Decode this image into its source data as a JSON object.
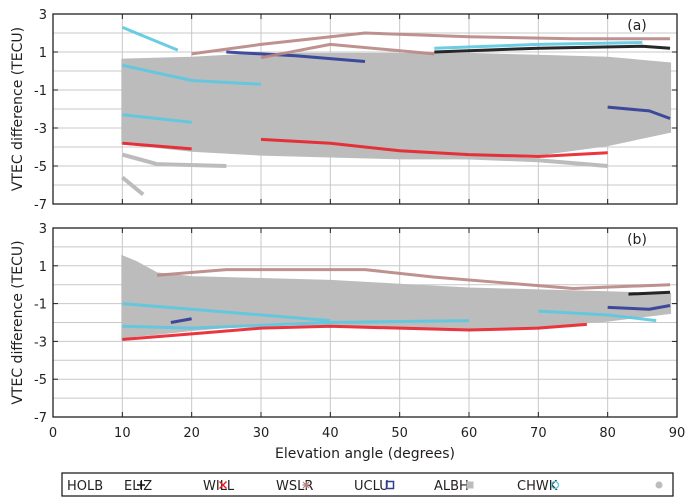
{
  "chart_data": [
    {
      "type": "scatter",
      "panel_label": "(a)",
      "xlabel": "Elevation angle (degrees)",
      "ylabel": "VTEC difference (TECU)",
      "xlim": [
        0,
        90
      ],
      "ylim": [
        -7,
        3
      ],
      "xticks": [
        0,
        10,
        20,
        30,
        40,
        50,
        60,
        70,
        80,
        90
      ],
      "yticks": [
        3,
        1,
        -1,
        -3,
        -5,
        -7
      ],
      "grid": true,
      "series": [
        {
          "name": "ALBH",
          "color": "#bcbcbc",
          "band": {
            "x": [
              10,
              20,
              30,
              40,
              50,
              60,
              70,
              80,
              89
            ],
            "upper": [
              0.6,
              0.7,
              0.9,
              0.9,
              0.9,
              0.9,
              0.8,
              0.7,
              0.4
            ],
            "lower": [
              -3.8,
              -4.2,
              -4.4,
              -4.5,
              -4.6,
              -4.6,
              -4.4,
              -3.9,
              -3.2
            ]
          },
          "traces": [
            {
              "x": [
                10,
                13
              ],
              "y": [
                -5.6,
                -6.5
              ]
            },
            {
              "x": [
                10,
                15,
                25
              ],
              "y": [
                -4.4,
                -4.9,
                -5.0
              ]
            },
            {
              "x": [
                30,
                50,
                70,
                80
              ],
              "y": [
                -4.2,
                -4.4,
                -4.7,
                -5.0
              ]
            }
          ]
        },
        {
          "name": "CHWK",
          "color": "#5bc8e0",
          "traces": [
            {
              "x": [
                10,
                14,
                18
              ],
              "y": [
                2.3,
                1.7,
                1.1
              ]
            },
            {
              "x": [
                10,
                20,
                30
              ],
              "y": [
                0.3,
                -0.5,
                -0.7
              ]
            },
            {
              "x": [
                10,
                15,
                20
              ],
              "y": [
                -2.3,
                -2.5,
                -2.7
              ]
            },
            {
              "x": [
                55,
                70,
                85
              ],
              "y": [
                1.2,
                1.4,
                1.5
              ]
            }
          ]
        },
        {
          "name": "UCLU",
          "color": "#2e3c96",
          "traces": [
            {
              "x": [
                25,
                35,
                45
              ],
              "y": [
                1.0,
                0.8,
                0.5
              ]
            },
            {
              "x": [
                80,
                86,
                89
              ],
              "y": [
                -1.9,
                -2.1,
                -2.5
              ]
            }
          ]
        },
        {
          "name": "WSLR",
          "color": "#b88684",
          "traces": [
            {
              "x": [
                20,
                30,
                45,
                60,
                75,
                89
              ],
              "y": [
                0.9,
                1.4,
                2.0,
                1.8,
                1.7,
                1.7
              ]
            },
            {
              "x": [
                30,
                40,
                55
              ],
              "y": [
                0.7,
                1.4,
                0.9
              ]
            }
          ]
        },
        {
          "name": "WILL",
          "color": "#e8202a",
          "traces": [
            {
              "x": [
                10,
                20
              ],
              "y": [
                -3.8,
                -4.1
              ]
            },
            {
              "x": [
                30,
                40,
                50,
                60,
                70,
                80
              ],
              "y": [
                -3.6,
                -3.8,
                -4.2,
                -4.4,
                -4.5,
                -4.3
              ]
            }
          ]
        },
        {
          "name": "ELIZ",
          "color": "#111111",
          "traces": [
            {
              "x": [
                55,
                70,
                85,
                89
              ],
              "y": [
                1.0,
                1.2,
                1.3,
                1.2
              ]
            }
          ]
        }
      ]
    },
    {
      "type": "scatter",
      "panel_label": "(b)",
      "xlabel": "Elevation angle (degrees)",
      "ylabel": "VTEC difference (TECU)",
      "xlim": [
        0,
        90
      ],
      "ylim": [
        -7,
        3
      ],
      "xticks": [
        0,
        10,
        20,
        30,
        40,
        50,
        60,
        70,
        80,
        90
      ],
      "yticks": [
        3,
        1,
        -1,
        -3,
        -5,
        -7
      ],
      "grid": true,
      "series": [
        {
          "name": "ALBH",
          "color": "#bcbcbc",
          "band": {
            "x": [
              10,
              12,
              15,
              20,
              30,
              40,
              50,
              60,
              70,
              80,
              89
            ],
            "upper": [
              1.5,
              1.2,
              0.6,
              0.4,
              0.3,
              0.2,
              0.0,
              -0.2,
              -0.3,
              -0.4,
              -0.5
            ],
            "lower": [
              -2.9,
              -2.7,
              -2.6,
              -2.4,
              -2.1,
              -2.1,
              -2.2,
              -2.3,
              -2.2,
              -1.9,
              -1.5
            ]
          }
        },
        {
          "name": "CHWK",
          "color": "#5bc8e0",
          "traces": [
            {
              "x": [
                10,
                20,
                30,
                40
              ],
              "y": [
                -1.0,
                -1.3,
                -1.6,
                -1.9
              ]
            },
            {
              "x": [
                10,
                20,
                40,
                60
              ],
              "y": [
                -2.2,
                -2.3,
                -2.0,
                -1.9
              ]
            },
            {
              "x": [
                70,
                80,
                87
              ],
              "y": [
                -1.4,
                -1.6,
                -1.9
              ]
            }
          ]
        },
        {
          "name": "UCLU",
          "color": "#2e3c96",
          "traces": [
            {
              "x": [
                17,
                20
              ],
              "y": [
                -2.0,
                -1.8
              ]
            },
            {
              "x": [
                80,
                86,
                89
              ],
              "y": [
                -1.2,
                -1.3,
                -1.1
              ]
            }
          ]
        },
        {
          "name": "WSLR",
          "color": "#b88684",
          "traces": [
            {
              "x": [
                15,
                25,
                35,
                45,
                55,
                65,
                75,
                89
              ],
              "y": [
                0.5,
                0.8,
                0.8,
                0.8,
                0.4,
                0.1,
                -0.2,
                0.0
              ]
            }
          ]
        },
        {
          "name": "WILL",
          "color": "#e8202a",
          "traces": [
            {
              "x": [
                10,
                20,
                30,
                40,
                50,
                60,
                70,
                77
              ],
              "y": [
                -2.9,
                -2.6,
                -2.3,
                -2.2,
                -2.3,
                -2.4,
                -2.3,
                -2.1
              ]
            }
          ]
        },
        {
          "name": "ELIZ",
          "color": "#111111",
          "traces": [
            {
              "x": [
                83,
                89
              ],
              "y": [
                -0.5,
                -0.4
              ]
            }
          ]
        }
      ]
    }
  ],
  "legend": {
    "placement": "bottom",
    "entries": [
      {
        "label": "HOLB",
        "marker": "+",
        "color": "#111111"
      },
      {
        "label": "ELIZ",
        "marker": "×",
        "color": "#e8202a"
      },
      {
        "label": "WILL",
        "marker": "✳",
        "color": "#b88684"
      },
      {
        "label": "WSLR",
        "marker": "square-open",
        "color": "#2e3c96"
      },
      {
        "label": "UCLU",
        "marker": "square-filled",
        "color": "#bcbcbc"
      },
      {
        "label": "ALBH",
        "marker": "circle-open",
        "color": "#5bc8e0"
      },
      {
        "label": "CHWK",
        "marker": "circle-filled",
        "color": "#bcbcbc"
      }
    ]
  }
}
